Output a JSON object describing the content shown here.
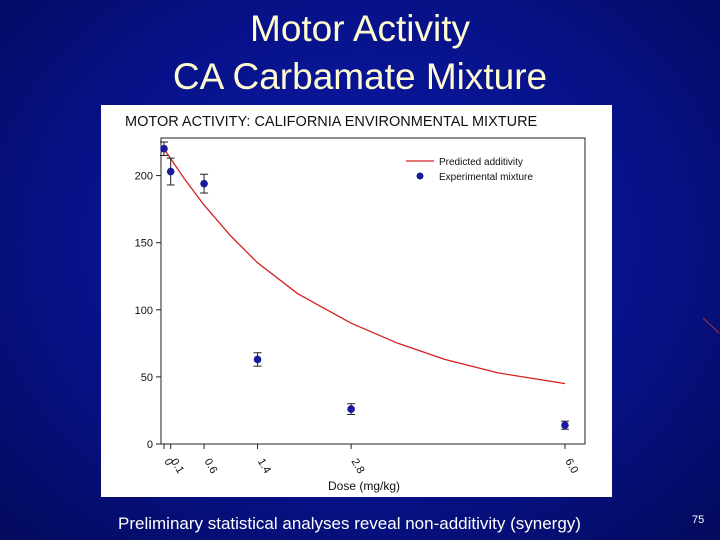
{
  "slide": {
    "title_line_1": "Motor Activity",
    "title_line_2": "CA Carbamate Mixture",
    "caption": "Preliminary statistical analyses reveal non-additivity (synergy)",
    "page_number": "75"
  },
  "colors": {
    "background": "#07128a",
    "title_text": "#fffbd0",
    "predicted_line": "#d42020",
    "experimental_points": "#1a1aa0"
  },
  "chart_data": {
    "type": "scatter",
    "title": "MOTOR ACTIVITY: CALIFORNIA ENVIRONMENTAL MIXTURE",
    "xlabel": "Dose (mg/kg)",
    "ylabel": "",
    "xlim": [
      0,
      6.3
    ],
    "ylim": [
      0,
      228
    ],
    "x_ticks": [
      {
        "value": 0,
        "label": "0"
      },
      {
        "value": 0.1,
        "label": "0.1"
      },
      {
        "value": 0.6,
        "label": "0.6"
      },
      {
        "value": 1.4,
        "label": "1.4"
      },
      {
        "value": 2.8,
        "label": "2.8"
      },
      {
        "value": 6.0,
        "label": "6.0"
      }
    ],
    "y_ticks": [
      0,
      50,
      100,
      150,
      200
    ],
    "legend": {
      "position": "top-right",
      "entries": [
        "Predicted additivity",
        "Experimental mixture"
      ]
    },
    "series": [
      {
        "name": "Predicted additivity",
        "kind": "line",
        "x": [
          0,
          0.3,
          0.6,
          1.0,
          1.4,
          2.0,
          2.8,
          3.5,
          4.2,
          5.0,
          6.0
        ],
        "y": [
          220,
          198,
          178,
          155,
          135,
          112,
          90,
          75,
          63,
          53,
          45
        ]
      },
      {
        "name": "Experimental mixture",
        "kind": "points",
        "x": [
          0,
          0.1,
          0.6,
          1.4,
          2.8,
          6.0
        ],
        "y": [
          220,
          203,
          194,
          63,
          26,
          14
        ],
        "error": [
          5,
          10,
          7,
          5,
          4,
          3
        ]
      }
    ]
  }
}
